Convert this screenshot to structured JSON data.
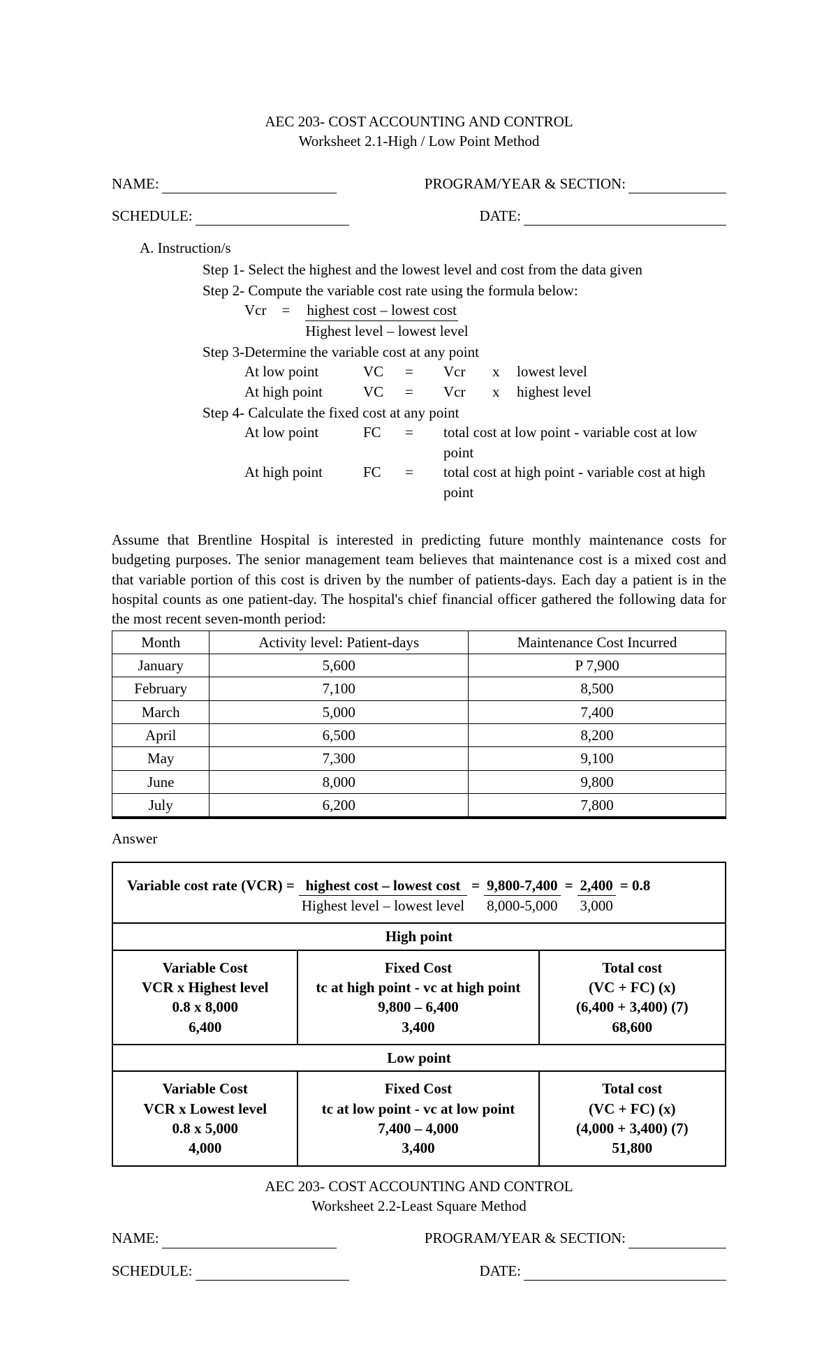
{
  "colors": {
    "text": "#000000",
    "bg": "#ffffff",
    "border": "#000000"
  },
  "typography": {
    "family": "Times New Roman",
    "base_size_pt": 16
  },
  "worksheet1": {
    "course_line": "AEC 203- COST ACCOUNTING AND CONTROL",
    "title": "Worksheet 2.1-High / Low  Point Method",
    "labels": {
      "name": "NAME:",
      "program": "PROGRAM/YEAR & SECTION:",
      "schedule": "SCHEDULE:",
      "date": "DATE:"
    },
    "instruction_header": "A.   Instruction/s",
    "steps": {
      "s1": "Step 1- Select the highest and the lowest level and cost from the data given",
      "s2": "Step 2- Compute the variable cost rate using the formula below:",
      "s2_vcr_lhs": "Vcr",
      "s2_eq": "=",
      "s2_num": "highest cost   – lowest cost",
      "s2_den": "Highest level – lowest level",
      "s3": "Step 3-Determine the variable cost at any point",
      "s3_low": {
        "lbl": "At low  point",
        "vc": "VC",
        "eq": "=",
        "vcr": "Vcr",
        "x": "x",
        "rhs": "lowest level"
      },
      "s3_high": {
        "lbl": "At high point",
        "vc": "VC",
        "eq": "=",
        "vcr": "Vcr",
        "x": "x",
        "rhs": "highest level"
      },
      "s4": "Step 4- Calculate the fixed cost at any point",
      "s4_low": {
        "lbl": "At low point",
        "fc": "FC",
        "eq": "=",
        "rhs": "total cost at low point    -   variable cost at low point"
      },
      "s4_high": {
        "lbl": "At high point",
        "fc": "FC",
        "eq": "=",
        "rhs": "total cost at high point  -   variable cost at high point"
      }
    },
    "paragraph": "Assume that Brentline Hospital is interested in predicting future monthly maintenance costs for budgeting purposes. The senior management team believes that maintenance cost is a mixed cost and that variable portion of this cost is driven by the number of patients-days. Each day a patient is in the hospital counts as one patient-day. The hospital's chief financial officer gathered the following data for the most recent seven-month period:",
    "table": {
      "columns": [
        "Month",
        "Activity level: Patient-days",
        "Maintenance Cost Incurred"
      ],
      "rows": [
        [
          "January",
          "5,600",
          "P 7,900"
        ],
        [
          "February",
          "7,100",
          "8,500"
        ],
        [
          "March",
          "5,000",
          "7,400"
        ],
        [
          "April",
          "6,500",
          "8,200"
        ],
        [
          "May",
          "7,300",
          "9,100"
        ],
        [
          "June",
          "8,000",
          "9,800"
        ],
        [
          "July",
          "6,200",
          "7,800"
        ]
      ]
    },
    "answer_label": "Answer",
    "answer": {
      "vcr_label": "Variable cost rate (VCR) =",
      "frac1": {
        "num": "highest cost   – lowest cost",
        "den": "Highest level – lowest level"
      },
      "eq1": "=",
      "frac2": {
        "num": "9,800-7,400",
        "den": "8,000-5,000"
      },
      "eq2": "=",
      "frac3": {
        "num": "2,400",
        "den": "3,000"
      },
      "eq3": "=  0.8",
      "high_header": "High point",
      "high_cells": {
        "vc": {
          "t1": "Variable Cost",
          "t2": "VCR x Highest level",
          "t3": "0.8 x 8,000",
          "t4": "6,400"
        },
        "fc": {
          "t1": "Fixed Cost",
          "t2": "tc at high point  -  vc at high point",
          "t3": "9,800 – 6,400",
          "t4": "3,400"
        },
        "tc": {
          "t1": "Total cost",
          "t2": "(VC + FC) (x)",
          "t3": "(6,400 + 3,400) (7)",
          "t4": "68,600"
        }
      },
      "low_header": "Low point",
      "low_cells": {
        "vc": {
          "t1": "Variable Cost",
          "t2": "VCR x Lowest level",
          "t3": "0.8 x 5,000",
          "t4": "4,000"
        },
        "fc": {
          "t1": "Fixed Cost",
          "t2": "tc at low point  -  vc at low point",
          "t3": "7,400 – 4,000",
          "t4": "3,400"
        },
        "tc": {
          "t1": "Total cost",
          "t2": "(VC + FC) (x)",
          "t3": "(4,000 + 3,400) (7)",
          "t4": "51,800"
        }
      }
    }
  },
  "worksheet2": {
    "course_line": "AEC 203- COST ACCOUNTING AND CONTROL",
    "title": "Worksheet 2.2-Least Square Method",
    "labels": {
      "name": "NAME:",
      "program": "PROGRAM/YEAR & SECTION:",
      "schedule": "SCHEDULE:",
      "date": "DATE:"
    }
  }
}
